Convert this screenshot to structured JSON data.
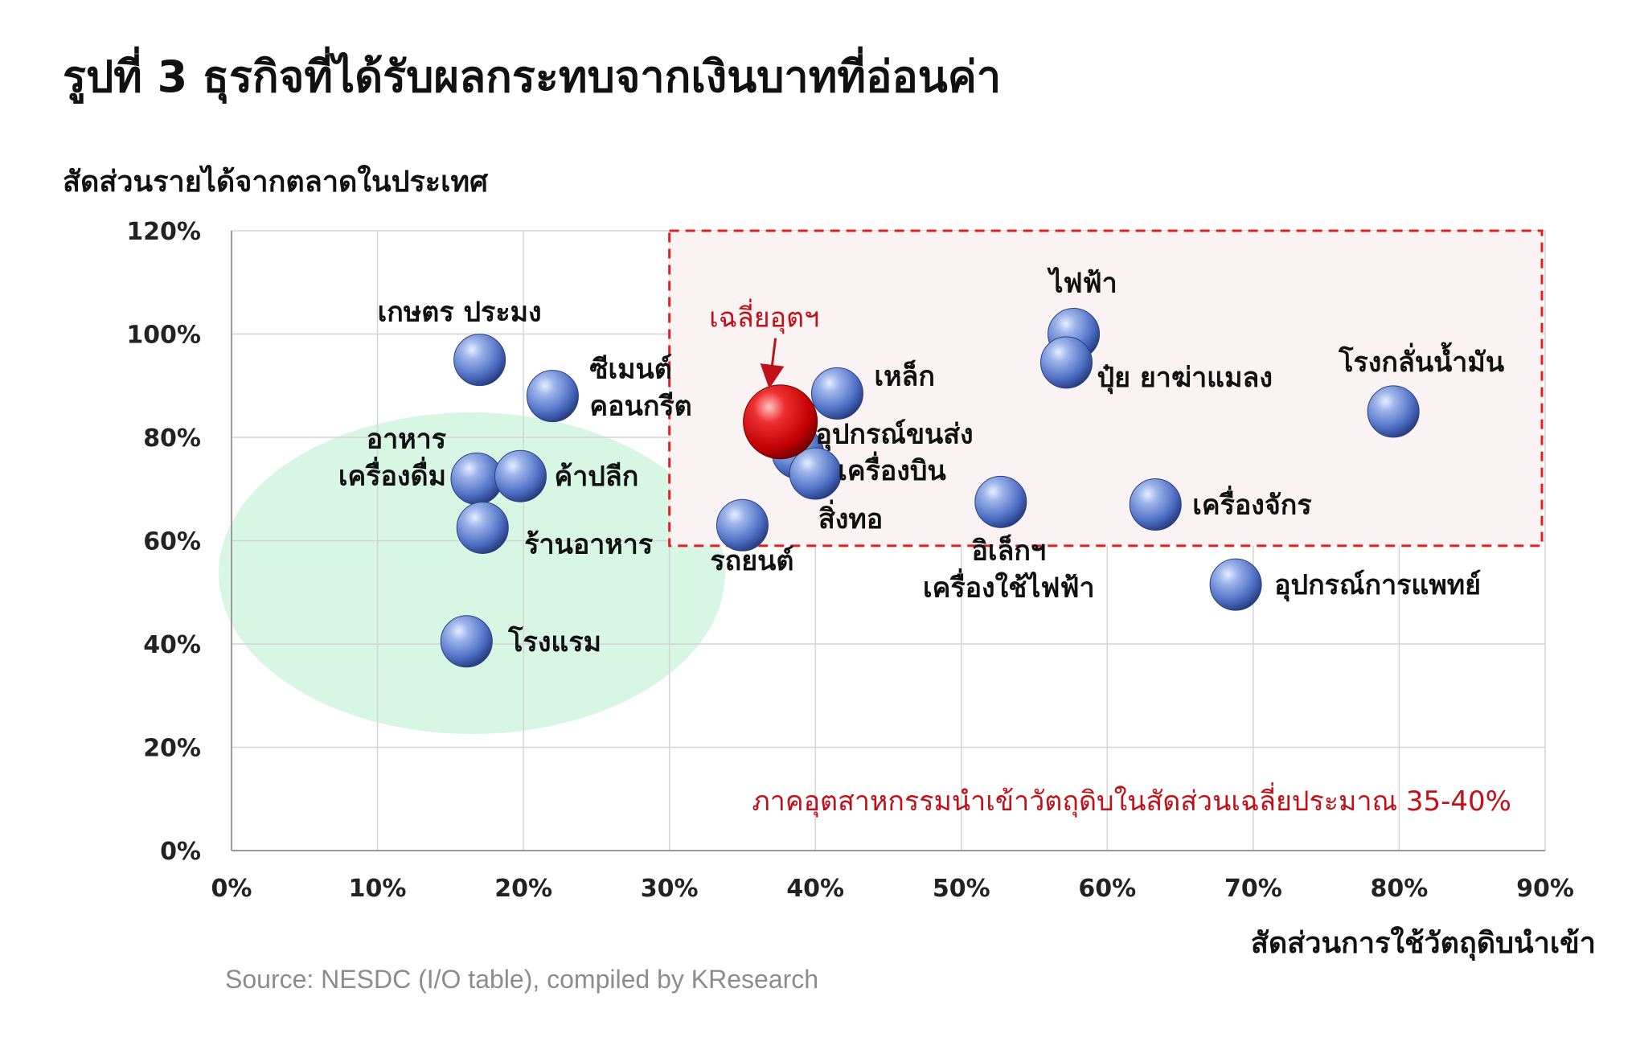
{
  "title": "รูปที่ 3 ธุรกิจที่ได้รับผลกระทบจากเงินบาทที่อ่อนค่า",
  "source": "Source: NESDC (I/O table), compiled by KResearch",
  "colors": {
    "bubble": "#4f6fc4",
    "highlight_bubble": "#cc1010",
    "highlight_box_stroke": "#e02020",
    "highlight_box_fill": "#fbf3f3",
    "ellipse_fill": "#d8f6e4",
    "annotation_text": "#c0101a",
    "grid": "#d4d4d4"
  },
  "chart_data": {
    "type": "scatter",
    "xlabel": "สัดส่วนการใช้วัตถุดิบนำเข้า",
    "ylabel": "สัดส่วนรายได้จากตลาดในประเทศ",
    "xlim": [
      0,
      90
    ],
    "ylim": [
      0,
      120
    ],
    "x_ticks": [
      "0%",
      "10%",
      "20%",
      "30%",
      "40%",
      "50%",
      "60%",
      "70%",
      "80%",
      "90%"
    ],
    "y_ticks": [
      "0%",
      "20%",
      "40%",
      "60%",
      "80%",
      "100%",
      "120%"
    ],
    "grid": true,
    "points": [
      {
        "label": "เกษตร ประมง",
        "x": 17,
        "y": 95
      },
      {
        "label": "ซีเมนต์\nคอนกรีต",
        "x": 22,
        "y": 88
      },
      {
        "label": "อาหาร\nเครื่องดื่ม",
        "x": 16.8,
        "y": 72
      },
      {
        "label": "ค้าปลีก",
        "x": 19.8,
        "y": 72.5
      },
      {
        "label": "ร้านอาหาร",
        "x": 17.2,
        "y": 62.5
      },
      {
        "label": "โรงแรม",
        "x": 16.1,
        "y": 40.5
      },
      {
        "label": "รถยนต์",
        "x": 35,
        "y": 63
      },
      {
        "label": "อุปกรณ์ขนส่ง",
        "x": 38.8,
        "y": 77
      },
      {
        "label": "เครื่องบิน",
        "x": 40,
        "y": 73
      },
      {
        "label": "เหล็ก",
        "x": 41.5,
        "y": 88.5
      },
      {
        "label": "ไฟฟ้า",
        "x": 57.7,
        "y": 100
      },
      {
        "label": "ปุ๋ย ยาฆ่าแมลง",
        "x": 57.2,
        "y": 94.5
      },
      {
        "label": "อิเล็กฯ\nเครื่องใช้ไฟฟ้า",
        "x": 52.7,
        "y": 67.5
      },
      {
        "label": "สิ่งทอ",
        "x": null,
        "y": null
      },
      {
        "label": "เครื่องจักร",
        "x": 63.3,
        "y": 67
      },
      {
        "label": "โรงกลั่นน้ำมัน",
        "x": 79.6,
        "y": 85
      },
      {
        "label": "อุปกรณ์การแพทย์",
        "x": 68.8,
        "y": 51.5
      }
    ],
    "highlight": {
      "label": "เฉลี่ยอุตฯ",
      "x": 37.6,
      "y": 83
    },
    "highlight_region": {
      "x": [
        30,
        90
      ],
      "y": [
        59,
        120
      ]
    },
    "annotation": "ภาคอุตสาหกรรมนำเข้าวัตถุดิบในสัดส่วนเฉลี่ยประมาณ 35-40%"
  }
}
